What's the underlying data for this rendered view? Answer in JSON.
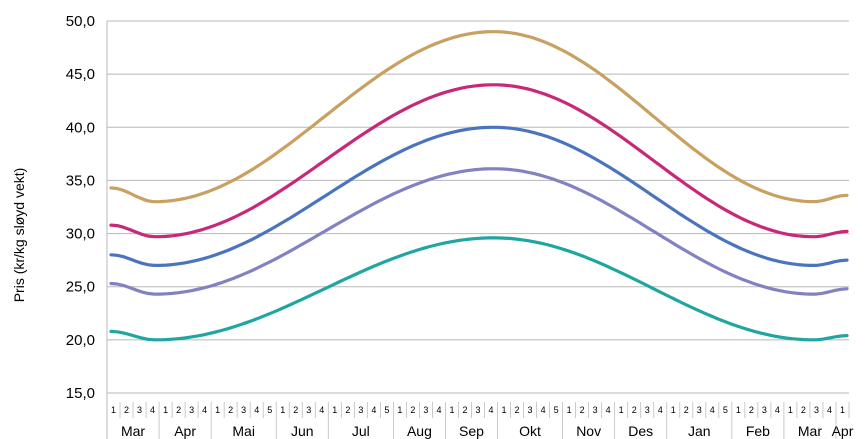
{
  "chart_data": {
    "type": "line",
    "title": "",
    "xlabel": "",
    "ylabel": "Pris (kr/kg sløyd vekt)",
    "ylim": [
      15,
      50
    ],
    "yticks": [
      "15,0",
      "20,0",
      "25,0",
      "30,0",
      "35,0",
      "40,0",
      "45,0",
      "50,0"
    ],
    "grid": "horizontal",
    "legend": "none",
    "months": [
      {
        "label": "Mar",
        "weeks": [
          "1",
          "2",
          "3",
          "4"
        ]
      },
      {
        "label": "Apr",
        "weeks": [
          "1",
          "2",
          "3",
          "4"
        ]
      },
      {
        "label": "Mai",
        "weeks": [
          "1",
          "2",
          "3",
          "4",
          "5"
        ]
      },
      {
        "label": "Jun",
        "weeks": [
          "1",
          "2",
          "3",
          "4"
        ]
      },
      {
        "label": "Jul",
        "weeks": [
          "1",
          "2",
          "3",
          "4",
          "5"
        ]
      },
      {
        "label": "Aug",
        "weeks": [
          "1",
          "2",
          "3",
          "4"
        ]
      },
      {
        "label": "Sep",
        "weeks": [
          "1",
          "2",
          "3",
          "4"
        ]
      },
      {
        "label": "Okt",
        "weeks": [
          "1",
          "2",
          "3",
          "4",
          "5"
        ]
      },
      {
        "label": "Nov",
        "weeks": [
          "1",
          "2",
          "3",
          "4"
        ]
      },
      {
        "label": "Des",
        "weeks": [
          "1",
          "2",
          "3",
          "4"
        ]
      },
      {
        "label": "Jan",
        "weeks": [
          "1",
          "2",
          "3",
          "4",
          "5"
        ]
      },
      {
        "label": "Feb",
        "weeks": [
          "1",
          "2",
          "3",
          "4"
        ]
      },
      {
        "label": "Mar",
        "weeks": [
          "1",
          "2",
          "3",
          "4"
        ]
      },
      {
        "label": "Apr",
        "weeks": [
          "1"
        ]
      }
    ],
    "series": [
      {
        "color": "#c8a060",
        "min": 33.0,
        "max": 49.0,
        "start": 34.3,
        "end": 33.6
      },
      {
        "color": "#c8287a",
        "min": 29.7,
        "max": 44.0,
        "start": 30.8,
        "end": 30.2
      },
      {
        "color": "#4a74be",
        "min": 27.0,
        "max": 40.0,
        "start": 28.0,
        "end": 27.5
      },
      {
        "color": "#8282c2",
        "min": 24.3,
        "max": 36.1,
        "start": 25.3,
        "end": 24.8
      },
      {
        "color": "#1fa6a0",
        "min": 20.0,
        "max": 29.6,
        "start": 20.8,
        "end": 20.4
      }
    ]
  }
}
